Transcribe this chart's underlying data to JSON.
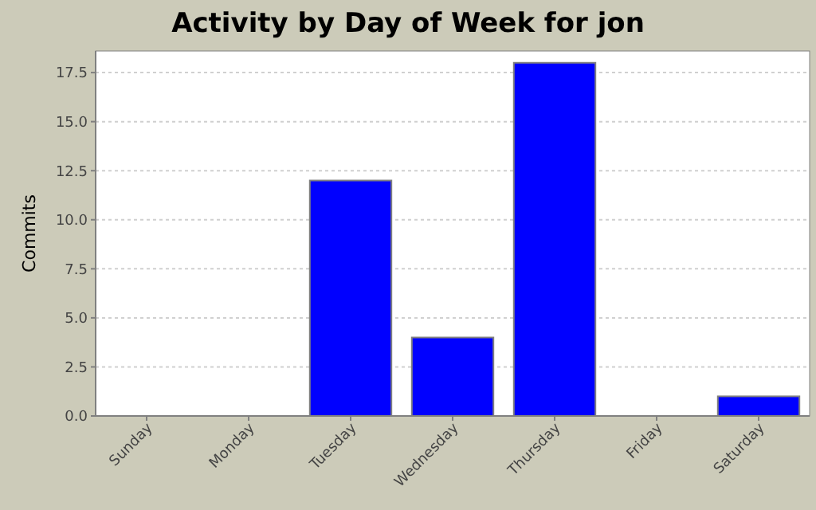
{
  "chart_data": {
    "type": "bar",
    "title": "Activity by Day of Week for jon",
    "ylabel": "Commits",
    "categories": [
      "Sunday",
      "Monday",
      "Tuesday",
      "Wednesday",
      "Thursday",
      "Friday",
      "Saturday"
    ],
    "values": [
      0,
      0,
      12,
      4,
      18,
      0,
      1
    ],
    "color": "#0000ff",
    "ylim": [
      0,
      18.6
    ],
    "yticks": [
      {
        "value": 0,
        "label": "0.0"
      },
      2.5,
      {
        "value": 5,
        "label": "5.0"
      },
      7.5,
      {
        "value": 10,
        "label": "10.0"
      },
      12.5,
      {
        "value": 15,
        "label": "15.0"
      },
      17.5
    ],
    "grid": "y"
  }
}
